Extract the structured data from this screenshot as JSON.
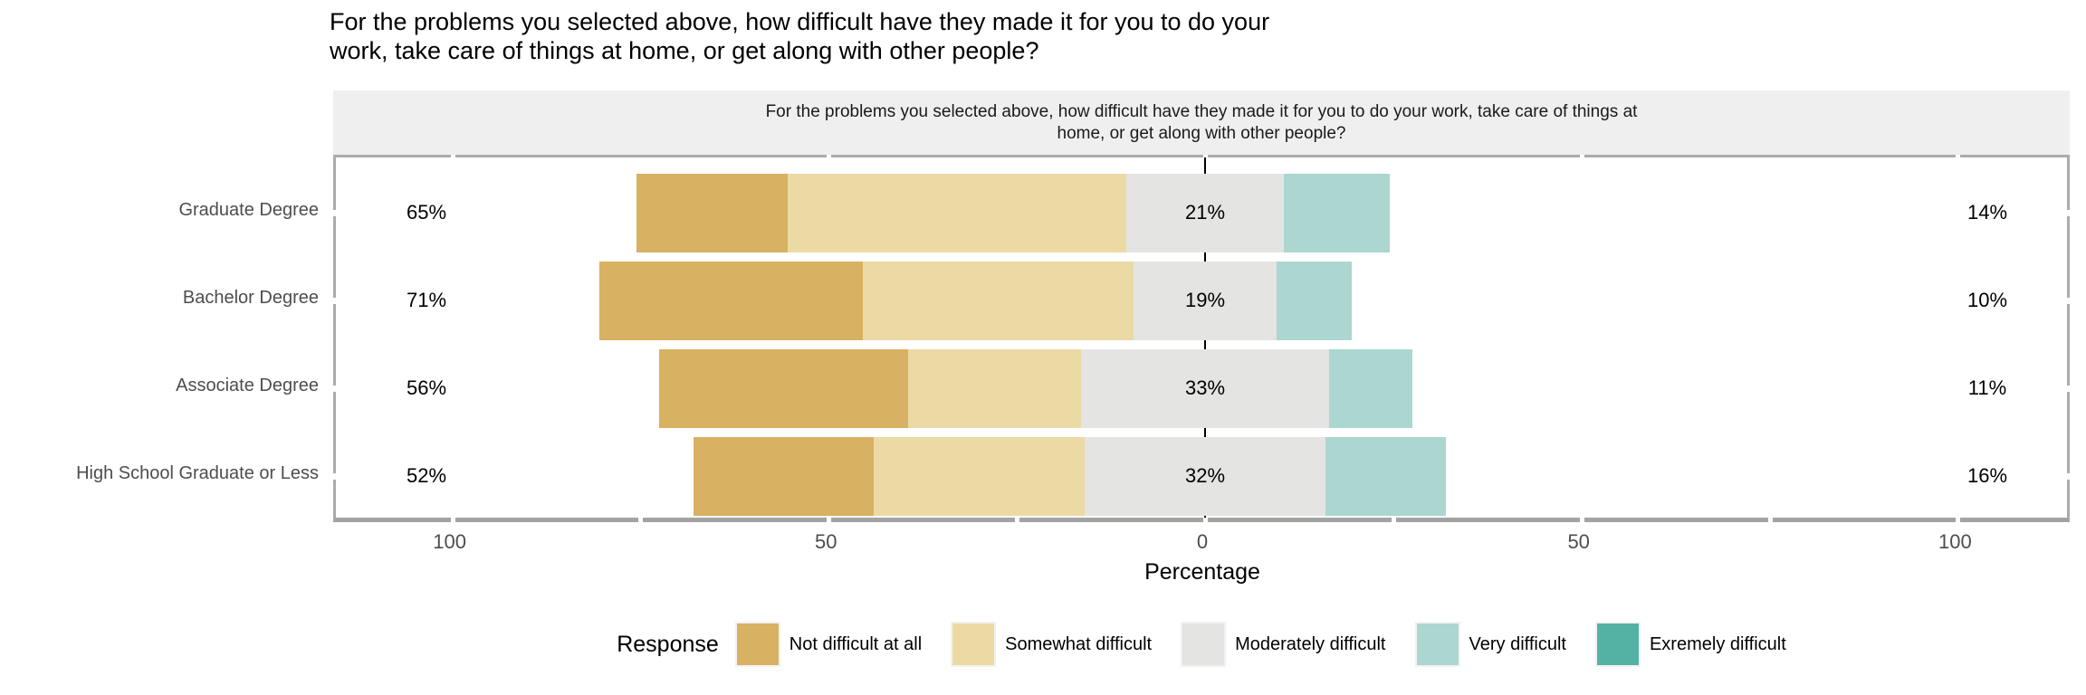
{
  "title": "For the problems you selected above, how difficult have they made it for you to do your\nwork, take care of things at home, or get along with other people?",
  "facet_strip": "For the problems you selected above, how difficult have they made it for you to do your work, take care of things at\nhome, or get along with other people?",
  "xlabel": "Percentage",
  "legend": {
    "title": "Response"
  },
  "colors": {
    "strip_background": "#efefef",
    "panel_border": "#ababab",
    "axis_line": "#a3a3a3",
    "zero_line": "#000000",
    "axis_text": "#4d4d4d"
  },
  "chart_data": {
    "type": "bar",
    "variant": "diverging-stacked-horizontal",
    "title": "For the problems you selected above, how difficult have they made it for you to do your work, take care of things at home, or get along with other people?",
    "xlabel": "Percentage",
    "ylabel": "",
    "categories": [
      "Graduate Degree",
      "Bachelor Degree",
      "Associate Degree",
      "High School Graduate or Less"
    ],
    "series": [
      {
        "name": "Not difficult at all",
        "color": "#d8b163",
        "values": [
          20,
          35,
          33,
          24
        ]
      },
      {
        "name": "Somewhat difficult",
        "color": "#ecdaa5",
        "values": [
          45,
          36,
          23,
          28
        ]
      },
      {
        "name": "Moderately difficult",
        "color": "#e4e4e2",
        "values": [
          21,
          19,
          33,
          32
        ]
      },
      {
        "name": "Very difficult",
        "color": "#abd7d0",
        "values": [
          14,
          10,
          11,
          16
        ]
      },
      {
        "name": "Exremely difficult",
        "color": "#54b2a5",
        "values": [
          0,
          0,
          0,
          0
        ]
      }
    ],
    "annotation_left_labels": [
      "65%",
      "71%",
      "56%",
      "52%"
    ],
    "annotation_center_labels": [
      "21%",
      "19%",
      "33%",
      "32%"
    ],
    "annotation_right_labels": [
      "14%",
      "10%",
      "11%",
      "16%"
    ],
    "x_ticks": [
      {
        "value": -100,
        "label": "100"
      },
      {
        "value": -50,
        "label": "50"
      },
      {
        "value": 0,
        "label": "0"
      },
      {
        "value": 50,
        "label": "50"
      },
      {
        "value": 100,
        "label": "100"
      }
    ],
    "x_minor_tick_step": 25,
    "xlim": [
      -115,
      115
    ],
    "grid": false,
    "legend_position": "bottom",
    "notes": "Moderately difficult segment is centered on zero; left label = sum of first two series; right label = sum of last two series."
  }
}
